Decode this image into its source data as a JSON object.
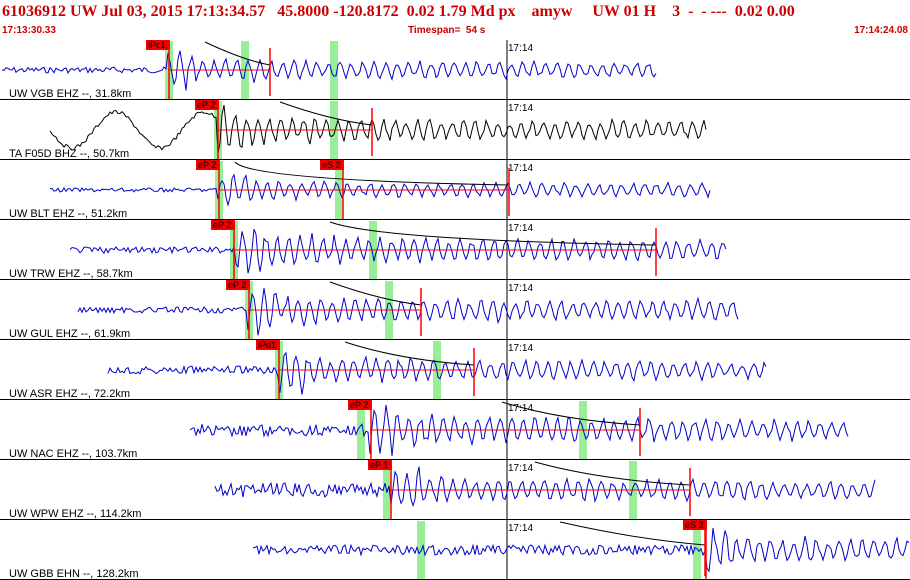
{
  "header": {
    "title": "61036912 UW Jul 03, 2015 17:13:34.57   45.8000 -120.8172  0.02 1.79 Md px    amyw     UW 01 H    3  -  - ---  0.02 0.00",
    "start_time": "17:13:30.33",
    "timespan": "Timespan=  54 s",
    "end_time": "17:14:24.08"
  },
  "colors": {
    "title": "#cc0000",
    "trace_blue": "#0000cc",
    "trace_black": "#000000",
    "pick_red": "#ff0000",
    "window_green": "#99ee99",
    "pick_label_bg": "#ee0000"
  },
  "time_marker_label": "17:14",
  "traces": [
    {
      "label": "UW VGB EHZ --, 31.8km",
      "color": "blue",
      "picks": [
        {
          "label": "iPc1"
        }
      ]
    },
    {
      "label": "TA F05D BHZ --, 50.7km",
      "color": "black",
      "picks": [
        {
          "label": "eP 2"
        }
      ]
    },
    {
      "label": "UW BLT EHZ --, 51.2km",
      "color": "blue",
      "picks": [
        {
          "label": "eP 2"
        },
        {
          "label": "eS 2"
        }
      ]
    },
    {
      "label": "UW TRW EHZ --, 58.7km",
      "color": "blue",
      "picks": [
        {
          "label": "eP 2"
        }
      ]
    },
    {
      "label": "UW GUL EHZ --, 61.9km",
      "color": "blue",
      "picks": [
        {
          "label": "eP 2"
        }
      ]
    },
    {
      "label": "UW ASR EHZ --, 72.2km",
      "color": "blue",
      "picks": [
        {
          "label": "iPd1"
        }
      ]
    },
    {
      "label": "UW NAC EHZ --, 103.7km",
      "color": "blue",
      "picks": [
        {
          "label": "eP 2"
        }
      ]
    },
    {
      "label": "UW WPW EHZ --, 114.2km",
      "color": "blue",
      "picks": [
        {
          "label": "eP 1"
        }
      ]
    },
    {
      "label": "UW GBB EHN --, 128.2km",
      "color": "blue",
      "picks": [
        {
          "label": "eS 2"
        }
      ]
    }
  ]
}
